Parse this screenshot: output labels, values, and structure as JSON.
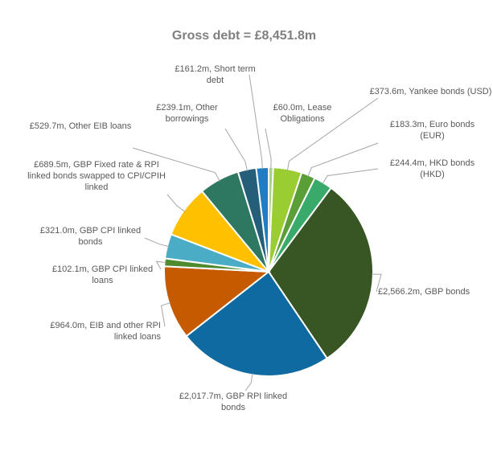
{
  "chart_data": {
    "type": "pie",
    "title": "Gross debt = £8,451.8m",
    "values": [
      60.0,
      373.6,
      183.3,
      244.4,
      2566.2,
      2017.7,
      964.0,
      102.1,
      321.0,
      689.5,
      529.7,
      239.1,
      161.2
    ],
    "value_labels": [
      "£60.0m, Lease Obligations",
      "£373.6m, Yankee bonds (USD)",
      "£183.3m, Euro bonds (EUR)",
      "£244.4m, HKD bonds (HKD)",
      "£2,566.2m, GBP bonds",
      "£2,017.7m, GBP RPI linked bonds",
      "£964.0m, EIB and other RPI linked loans",
      "£102.1m, GBP CPI linked loans",
      "£321.0m, GBP CPI linked bonds",
      "£689.5m, GBP Fixed rate & RPI linked bonds swapped to CPI/CPIH linked",
      "£529.7m, Other EIB loans",
      "£239.1m, Other borrowings",
      "£161.2m, Short term debt"
    ],
    "colors": [
      "#a9d18e",
      "#9acd32",
      "#5a9e38",
      "#3aaa6a",
      "#375623",
      "#0e6aa0",
      "#c55a00",
      "#4e8a2e",
      "#4bacc6",
      "#ffc000",
      "#2e7760",
      "#255e79",
      "#1f7ec3"
    ]
  }
}
